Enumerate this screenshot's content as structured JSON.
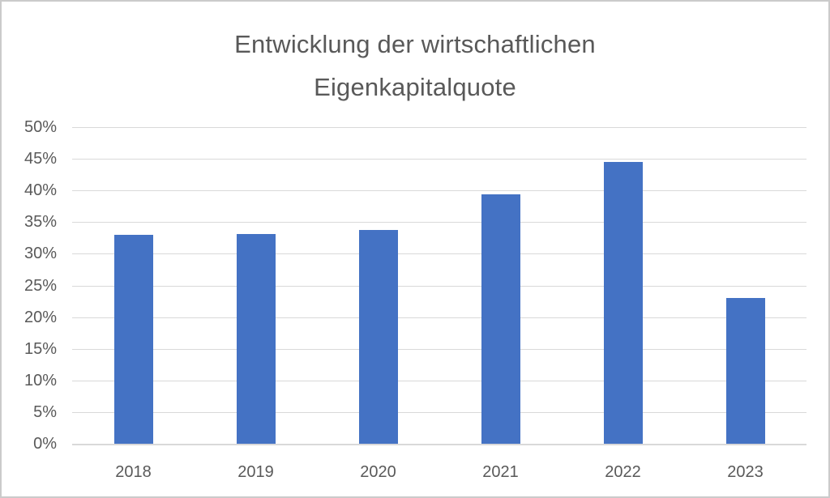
{
  "chart_data": {
    "type": "bar",
    "title": "Entwicklung der wirtschaftlichen Eigenkapitalquote",
    "title_lines": [
      "Entwicklung der wirtschaftlichen",
      "Eigenkapitalquote"
    ],
    "categories": [
      "2018",
      "2019",
      "2020",
      "2021",
      "2022",
      "2023"
    ],
    "values": [
      33.0,
      33.1,
      33.8,
      39.4,
      44.5,
      23.0
    ],
    "unit": "%",
    "xlabel": "",
    "ylabel": "",
    "ylim": [
      0,
      50
    ],
    "ytick_step": 5,
    "ytick_labels": [
      "0%",
      "5%",
      "10%",
      "15%",
      "20%",
      "25%",
      "30%",
      "35%",
      "40%",
      "45%",
      "50%"
    ],
    "grid": true,
    "legend_position": "none",
    "bar_color": "#4472C4",
    "gridline_color": "#D9D9D9",
    "text_color": "#595959",
    "background_color": "#FFFFFF"
  }
}
